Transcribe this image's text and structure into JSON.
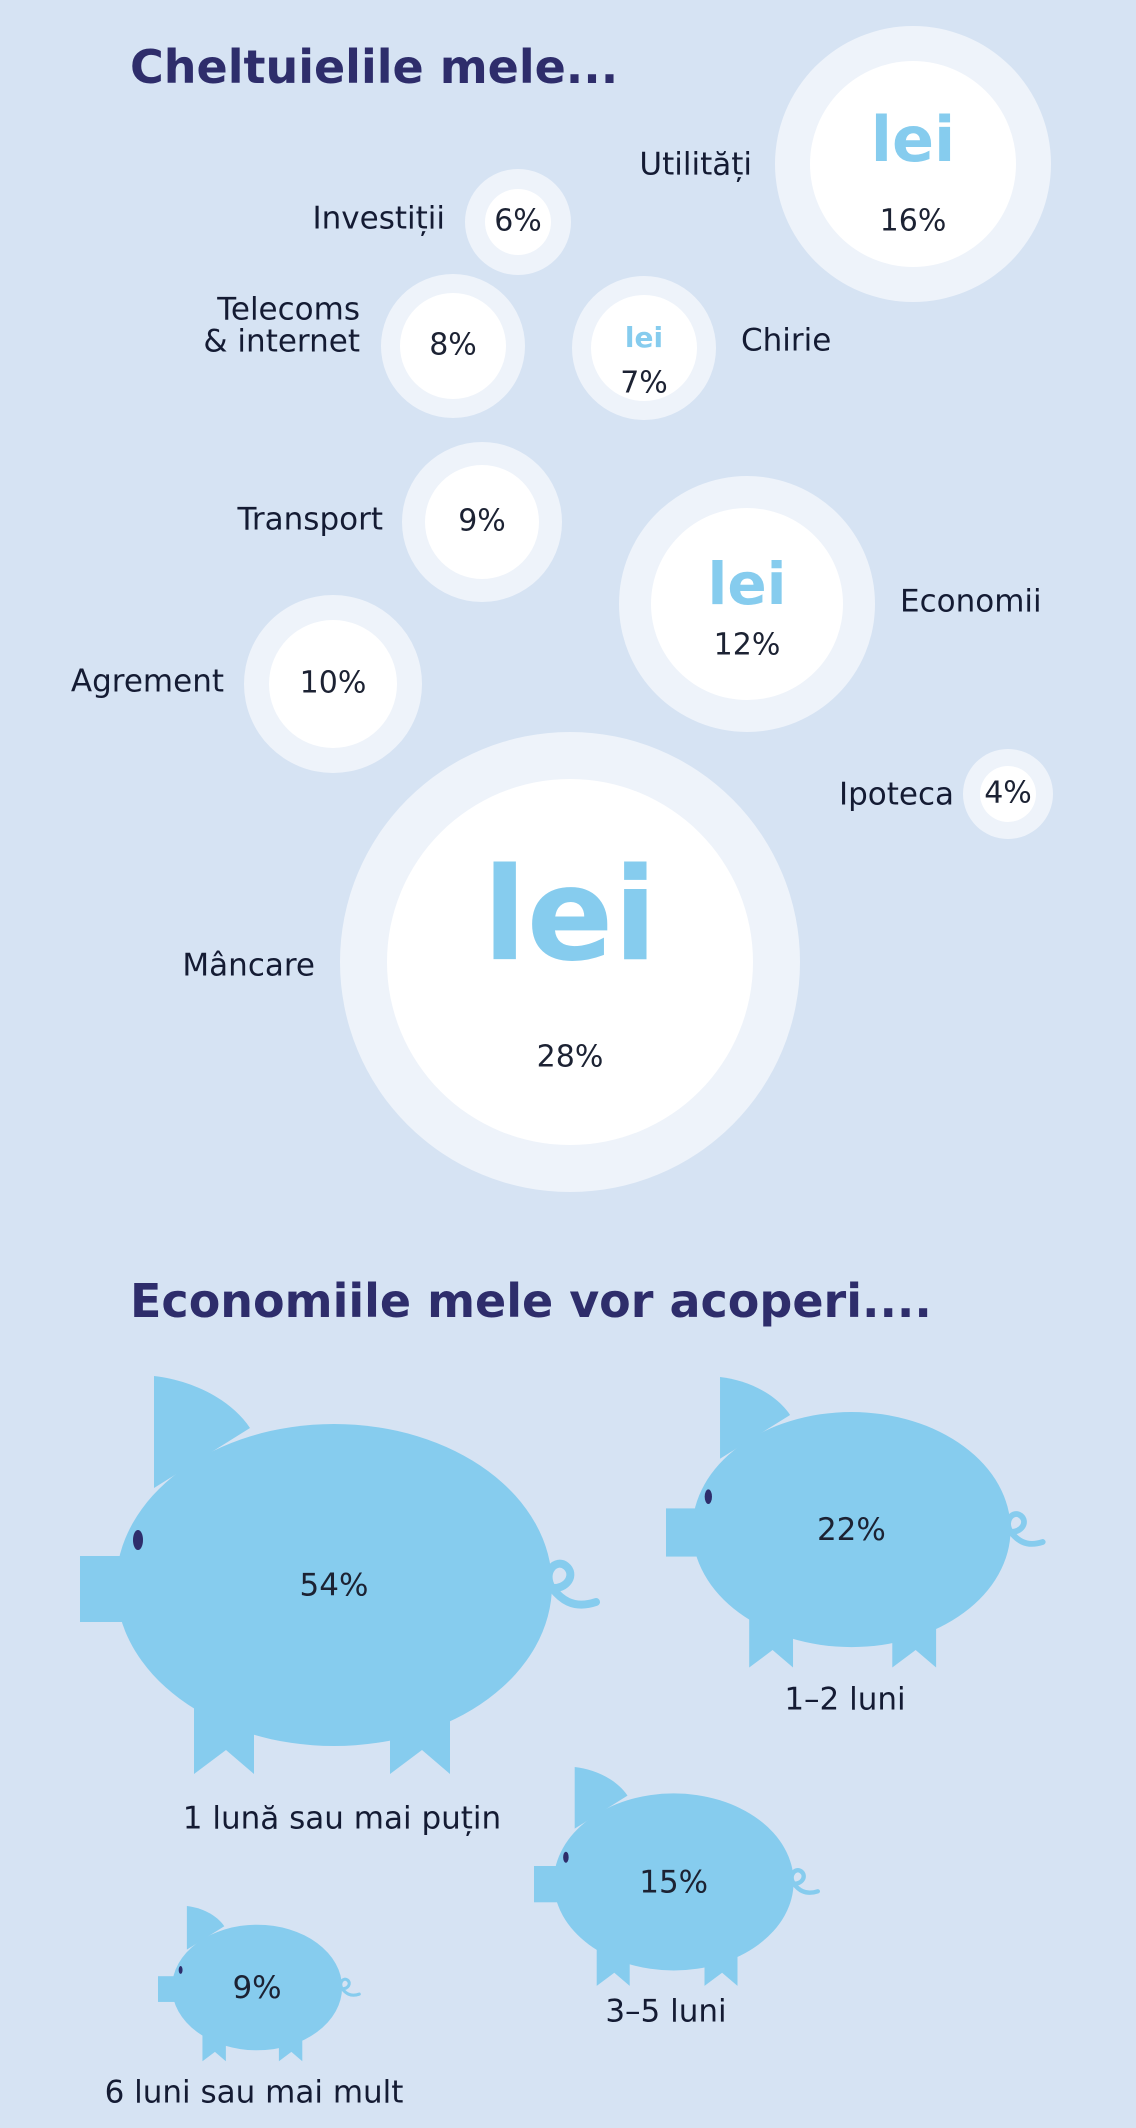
{
  "colors": {
    "background": "#d6e3f3",
    "title": "#2e2d6b",
    "bubble_outer": "#eef3fa",
    "bubble_inner": "#ffffff",
    "currency_mark": "#86ccee",
    "pig": "#86ccee",
    "pig_eye": "#2e2d6b",
    "text": "#141b33"
  },
  "icons": [
    "lei-currency-icon",
    "piggy-bank-icon"
  ],
  "chart_data": [
    {
      "type": "bubble",
      "title": "Cheltuielile mele...",
      "currency_mark": "lei",
      "series": [
        {
          "name": "Utilități",
          "value": 16,
          "label": "16%",
          "icon": "lei"
        },
        {
          "name": "Investiții",
          "value": 6,
          "label": "6%"
        },
        {
          "name": "Telecoms\n& internet",
          "value": 8,
          "label": "8%"
        },
        {
          "name": "Chirie",
          "value": 7,
          "label": "7%",
          "icon": "lei"
        },
        {
          "name": "Transport",
          "value": 9,
          "label": "9%"
        },
        {
          "name": "Economii",
          "value": 12,
          "label": "12%",
          "icon": "lei"
        },
        {
          "name": "Agrement",
          "value": 10,
          "label": "10%"
        },
        {
          "name": "Ipoteca",
          "value": 4,
          "label": "4%"
        },
        {
          "name": "Mâncare",
          "value": 28,
          "label": "28%",
          "icon": "lei"
        }
      ]
    },
    {
      "type": "pictograph",
      "title": "Economiile mele vor acoperi....",
      "series": [
        {
          "name": "1 lună sau mai puțin",
          "value": 54,
          "label": "54%"
        },
        {
          "name": "1–2 luni",
          "value": 22,
          "label": "22%"
        },
        {
          "name": "3–5 luni",
          "value": 15,
          "label": "15%"
        },
        {
          "name": "6 luni sau mai mult",
          "value": 9,
          "label": "9%"
        }
      ]
    }
  ]
}
